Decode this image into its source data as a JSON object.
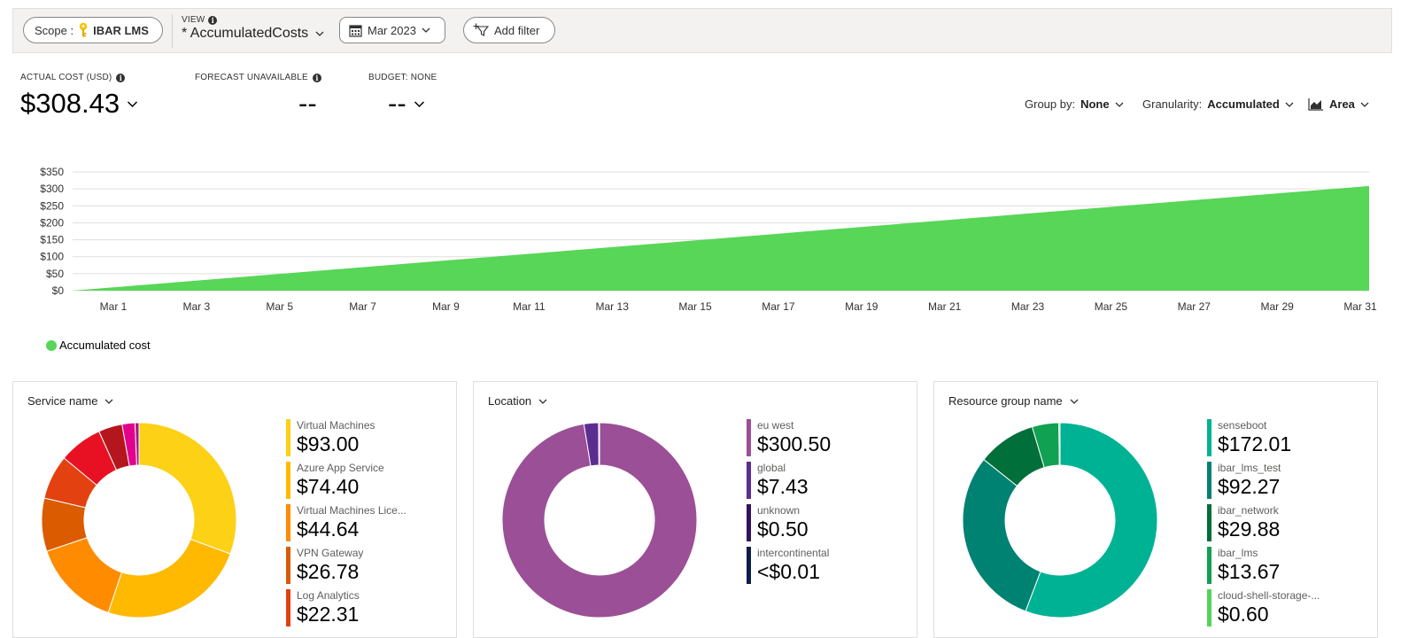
{
  "toolbar": {
    "scope_label": "Scope :",
    "scope_value": "IBAR LMS",
    "view_label": "VIEW",
    "view_name": "* AccumulatedCosts",
    "date_range": "Mar 2023",
    "add_filter": "Add filter"
  },
  "kpis": {
    "actual_label": "ACTUAL COST (USD)",
    "actual_value": "$308.43",
    "forecast_label": "FORECAST UNAVAILABLE",
    "forecast_value": "--",
    "budget_label": "BUDGET: NONE",
    "budget_value": "--"
  },
  "controls": {
    "group_by_label": "Group by:",
    "group_by_value": "None",
    "granularity_label": "Granularity:",
    "granularity_value": "Accumulated",
    "chart_type": "Area"
  },
  "chart_data": {
    "type": "area",
    "y_ticks": [
      "$0",
      "$50",
      "$100",
      "$150",
      "$200",
      "$250",
      "$300",
      "$350"
    ],
    "x_ticks": [
      "Mar 1",
      "Mar 3",
      "Mar 5",
      "Mar 7",
      "Mar 9",
      "Mar 11",
      "Mar 13",
      "Mar 15",
      "Mar 17",
      "Mar 19",
      "Mar 21",
      "Mar 23",
      "Mar 25",
      "Mar 27",
      "Mar 29",
      "Mar 31"
    ],
    "ylim": [
      0,
      350
    ],
    "x": [
      "Mar 1",
      "Mar 31"
    ],
    "series": [
      {
        "name": "Accumulated cost",
        "color": "#57d657",
        "values": [
          0,
          308.43
        ]
      }
    ],
    "grid": true,
    "legend_position": "bottom-left"
  },
  "breakdowns": [
    {
      "title": "Service name",
      "items": [
        {
          "name": "Virtual Machines",
          "value": "$93.00",
          "amount": 93.0,
          "color": "#fcd116"
        },
        {
          "name": "Azure App Service",
          "value": "$74.40",
          "amount": 74.4,
          "color": "#ffb900"
        },
        {
          "name": "Virtual Machines Lice...",
          "value": "$44.64",
          "amount": 44.64,
          "color": "#ff8c00"
        },
        {
          "name": "VPN Gateway",
          "value": "$26.78",
          "amount": 26.78,
          "color": "#da5b00"
        },
        {
          "name": "Log Analytics",
          "value": "$22.31",
          "amount": 22.31,
          "color": "#e3410f"
        }
      ],
      "other_slices": [
        {
          "amount": 22.0,
          "color": "#e81123"
        },
        {
          "amount": 12.0,
          "color": "#b5161e"
        },
        {
          "amount": 6.5,
          "color": "#e3008c"
        },
        {
          "amount": 2.0,
          "color": "#9b1a8a"
        }
      ]
    },
    {
      "title": "Location",
      "items": [
        {
          "name": "eu west",
          "value": "$300.50",
          "amount": 300.5,
          "color": "#9b4f96"
        },
        {
          "name": "global",
          "value": "$7.43",
          "amount": 7.43,
          "color": "#5c2d91"
        },
        {
          "name": "unknown",
          "value": "$0.50",
          "amount": 0.5,
          "color": "#32145a"
        },
        {
          "name": "intercontinental",
          "value": "<$0.01",
          "amount": 0.005,
          "color": "#0b1e4a"
        }
      ],
      "other_slices": []
    },
    {
      "title": "Resource group name",
      "items": [
        {
          "name": "senseboot",
          "value": "$172.01",
          "amount": 172.01,
          "color": "#00b294"
        },
        {
          "name": "ibar_lms_test",
          "value": "$92.27",
          "amount": 92.27,
          "color": "#008272"
        },
        {
          "name": "ibar_network",
          "value": "$29.88",
          "amount": 29.88,
          "color": "#006f3a"
        },
        {
          "name": "ibar_lms",
          "value": "$13.67",
          "amount": 13.67,
          "color": "#10a152"
        },
        {
          "name": "cloud-shell-storage-...",
          "value": "$0.60",
          "amount": 0.6,
          "color": "#56d25c"
        }
      ],
      "other_slices": []
    }
  ],
  "icons": [
    "key-icon",
    "info-icon",
    "chevron-down-icon",
    "calendar-icon",
    "filter-icon",
    "area-chart-icon"
  ]
}
